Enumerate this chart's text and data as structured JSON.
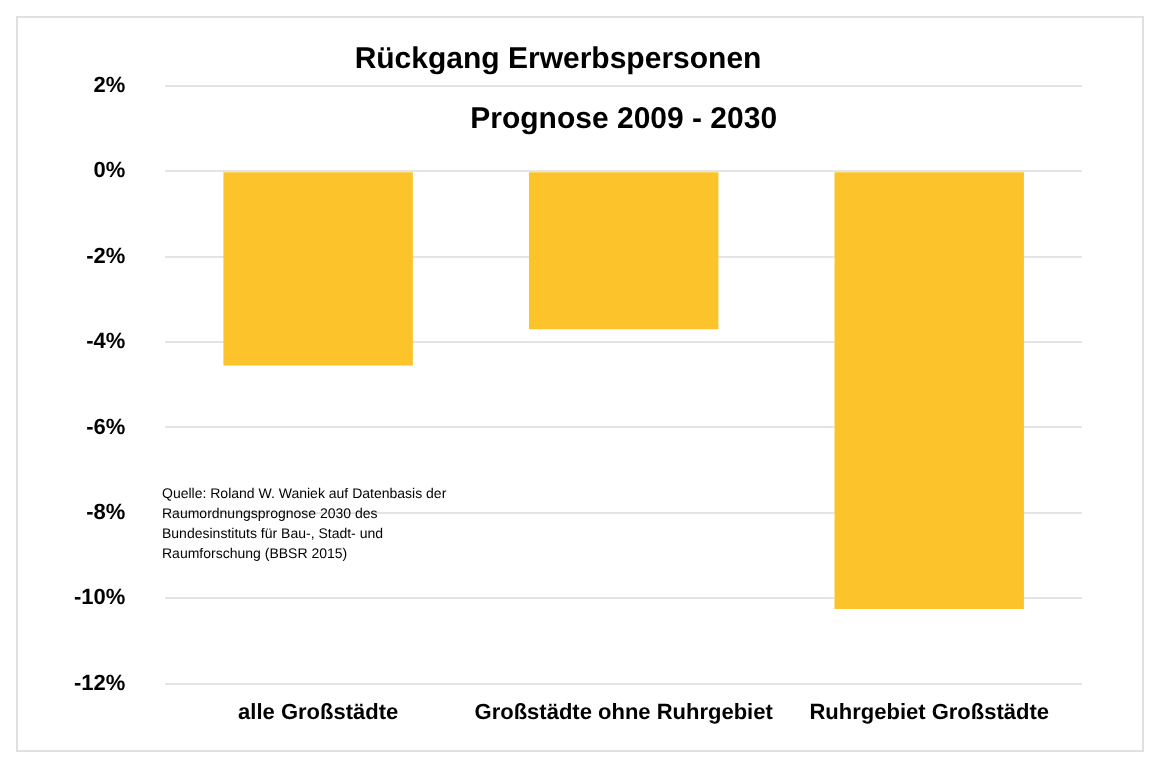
{
  "chart_data": {
    "type": "bar",
    "title": "Rückgang Erwerbspersonen",
    "subtitle": "Prognose 2009 - 2030",
    "categories": [
      "alle Großstädte",
      "Großstädte ohne Ruhrgebiet",
      "Ruhrgebiet Großstädte"
    ],
    "values": [
      -4.55,
      -3.7,
      -10.25
    ],
    "color": "#fcc42a",
    "ylim": [
      -12,
      2
    ],
    "yticks": [
      {
        "value": 2,
        "label": "2%"
      },
      {
        "value": 0,
        "label": "0%"
      },
      {
        "value": -2,
        "label": "-2%"
      },
      {
        "value": -4,
        "label": "-4%"
      },
      {
        "value": -6,
        "label": "-6%"
      },
      {
        "value": -8,
        "label": "-8%"
      },
      {
        "value": -10,
        "label": "-10%"
      },
      {
        "value": -12,
        "label": "-12%"
      }
    ],
    "grid": "y",
    "annotations": [
      "Quelle: Roland W. Waniek auf Datenbasis der Raumordnungsprognose 2030 des Bundesinstituts für Bau-, Stadt- und Raumforschung (BBSR 2015)"
    ]
  }
}
